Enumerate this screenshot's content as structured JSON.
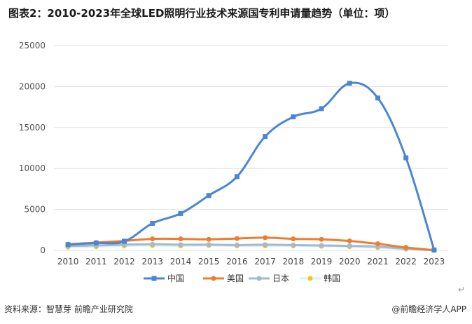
{
  "title": "图表2：2010-2023年全球LED照明行业技术来源国专利申请量趋势（单位：项）",
  "source": "资料来源：智慧芽 前瞻产业研究院",
  "brand": "@前瞻经济学人APP",
  "colors": {
    "china": "#4a86d4",
    "usa": "#ed7d31",
    "japan": "#a5b8cf",
    "korea": "#f5c518",
    "korea_line": "#d6f2fa",
    "grid": "#e2e2e2"
  },
  "chart_data": {
    "type": "line",
    "categories": [
      "2010",
      "2011",
      "2012",
      "2013",
      "2014",
      "2015",
      "2016",
      "2017",
      "2018",
      "2019",
      "2020",
      "2021",
      "2022",
      "2023"
    ],
    "ylim": [
      0,
      25000
    ],
    "yticks": [
      "0",
      "5000",
      "10000",
      "15000",
      "20000",
      "25000"
    ],
    "legend_position": "bottom",
    "grid": true,
    "series": [
      {
        "name": "中国",
        "values": [
          700,
          900,
          1100,
          3300,
          4500,
          6700,
          9000,
          13900,
          16300,
          17300,
          20400,
          18600,
          11300,
          50
        ]
      },
      {
        "name": "美国",
        "values": [
          750,
          950,
          1150,
          1400,
          1400,
          1350,
          1450,
          1550,
          1400,
          1350,
          1150,
          800,
          350,
          20
        ]
      },
      {
        "name": "日本",
        "values": [
          550,
          600,
          700,
          750,
          700,
          700,
          650,
          700,
          650,
          600,
          550,
          450,
          200,
          10
        ]
      },
      {
        "name": "韩国",
        "values": [
          400,
          450,
          550,
          600,
          550,
          600,
          550,
          550,
          550,
          500,
          450,
          350,
          150,
          10
        ]
      }
    ]
  }
}
